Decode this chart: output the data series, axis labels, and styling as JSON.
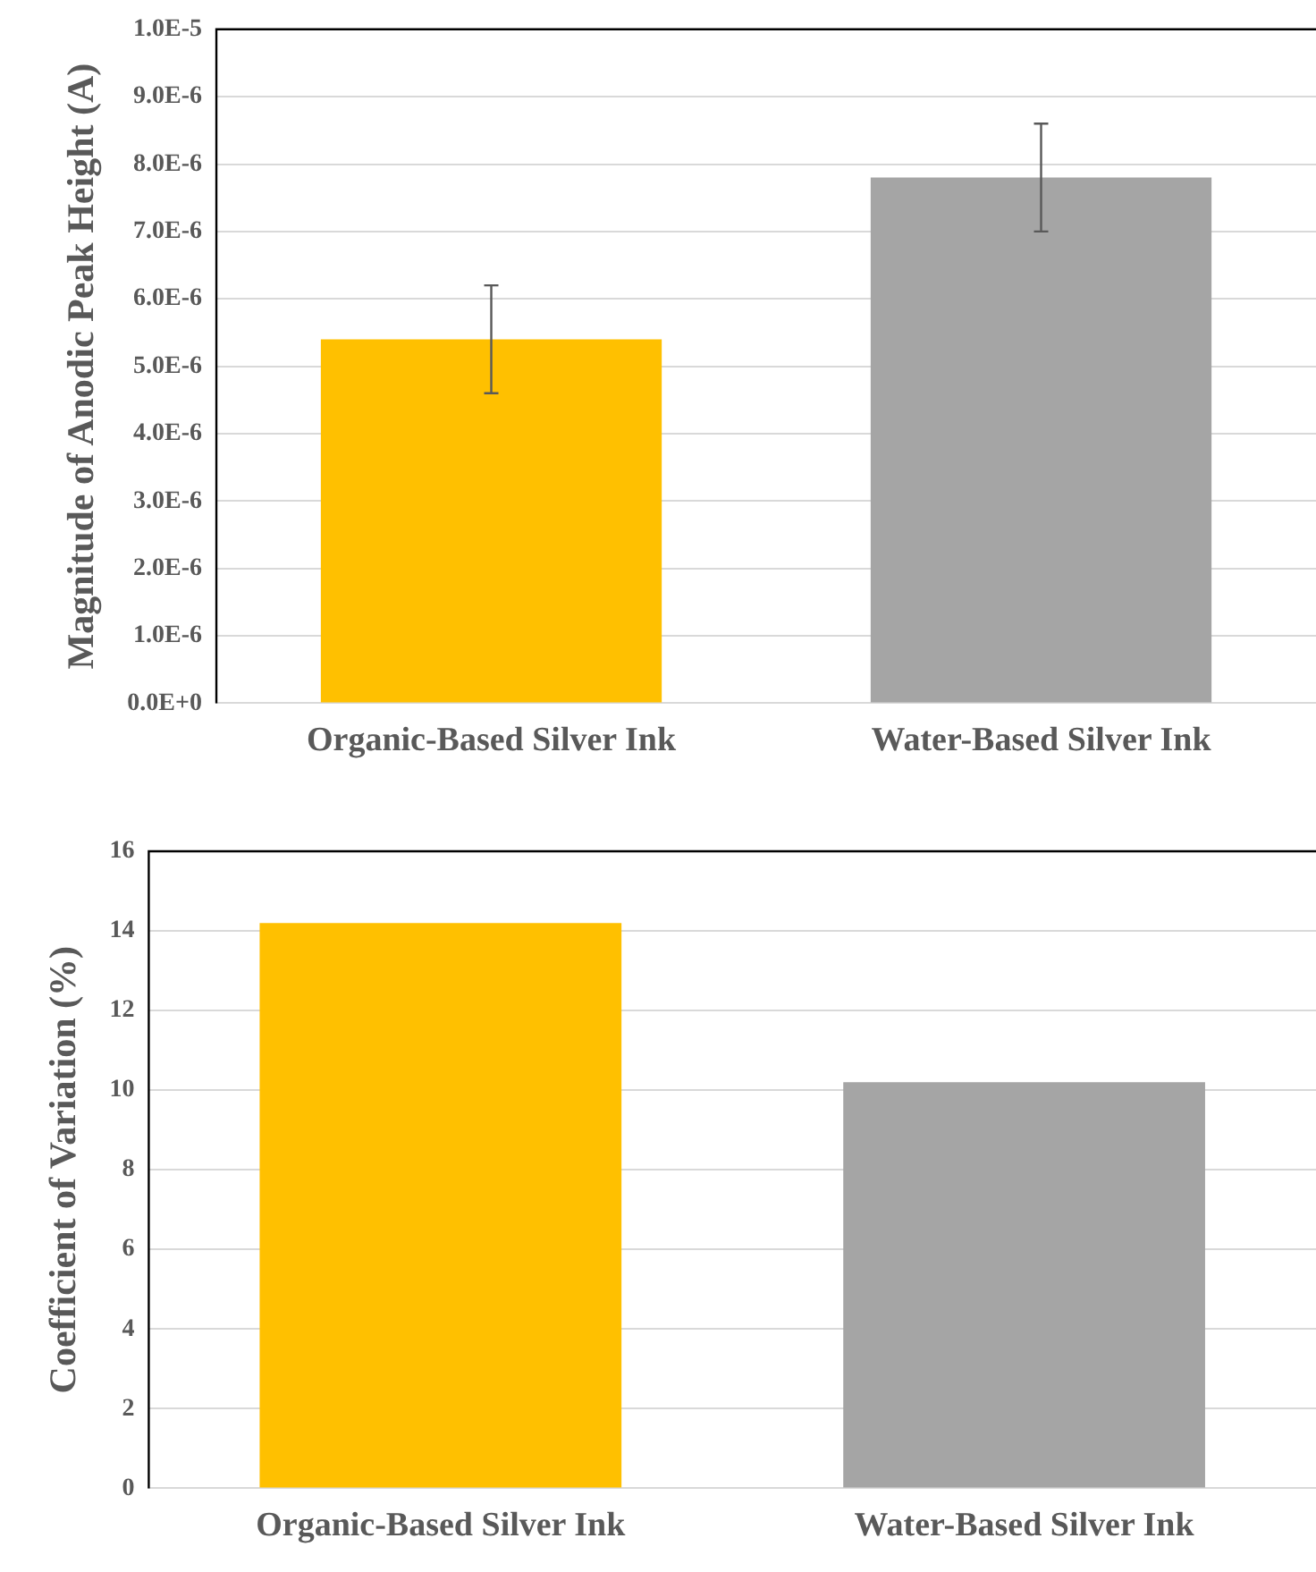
{
  "chart_data": [
    {
      "type": "bar",
      "ylabel": "Magnitude of Anodic Peak Height (A)",
      "categories": [
        "Organic-Based Silver Ink",
        "Water-Based Silver Ink"
      ],
      "values": [
        5.4e-06,
        7.8e-06
      ],
      "colors": [
        "#ffc000",
        "#a5a5a5"
      ],
      "errors": [
        8e-07,
        8e-07
      ],
      "ylim": [
        0,
        1e-05
      ],
      "yticks": [
        {
          "value": 0,
          "label": "0.0E+0"
        },
        {
          "value": 1e-06,
          "label": "1.0E-6"
        },
        {
          "value": 2e-06,
          "label": "2.0E-6"
        },
        {
          "value": 3e-06,
          "label": "3.0E-6"
        },
        {
          "value": 4e-06,
          "label": "4.0E-6"
        },
        {
          "value": 5e-06,
          "label": "5.0E-6"
        },
        {
          "value": 6e-06,
          "label": "6.0E-6"
        },
        {
          "value": 7e-06,
          "label": "7.0E-6"
        },
        {
          "value": 8e-06,
          "label": "8.0E-6"
        },
        {
          "value": 9e-06,
          "label": "9.0E-6"
        },
        {
          "value": 1e-05,
          "label": "1.0E-5"
        }
      ],
      "grid": "y",
      "legend": false
    },
    {
      "type": "bar",
      "ylabel": "Coefficient of Variation (%)",
      "categories": [
        "Organic-Based Silver Ink",
        "Water-Based Silver Ink"
      ],
      "values": [
        14.2,
        10.2
      ],
      "colors": [
        "#ffc000",
        "#a5a5a5"
      ],
      "ylim": [
        0,
        16
      ],
      "yticks": [
        0,
        2,
        4,
        6,
        8,
        10,
        12,
        14,
        16
      ],
      "grid": "y",
      "legend": false
    }
  ]
}
